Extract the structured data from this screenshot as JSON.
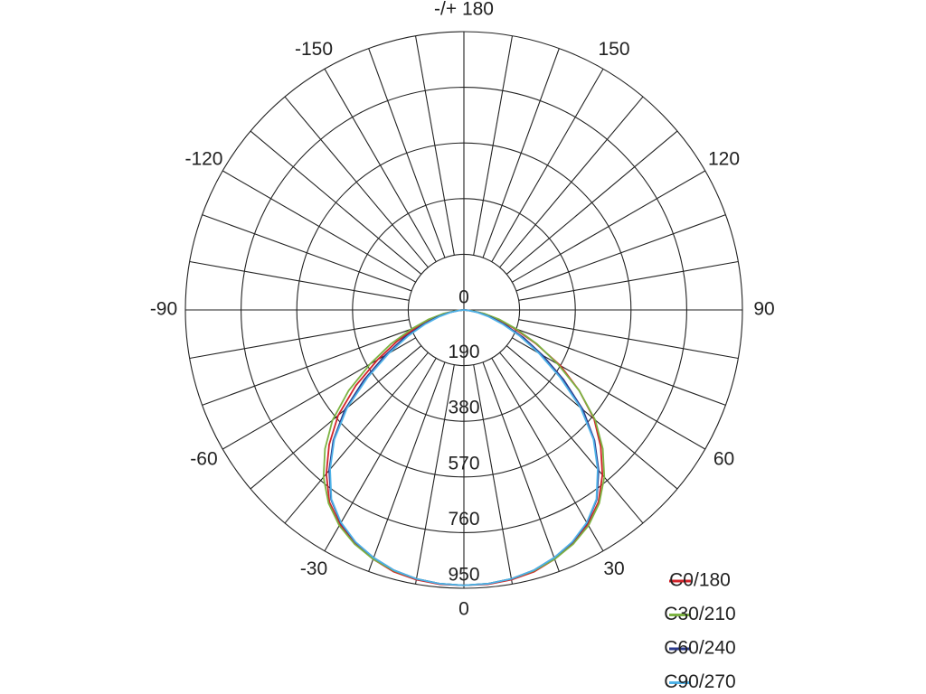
{
  "chart_data": {
    "type": "polar",
    "theta": [
      -90,
      -85,
      -80,
      -75,
      -70,
      -65,
      -60,
      -55,
      -50,
      -45,
      -40,
      -35,
      -30,
      -25,
      -20,
      -15,
      -10,
      -5,
      0,
      5,
      10,
      15,
      20,
      25,
      30,
      35,
      40,
      45,
      50,
      55,
      60,
      65,
      70,
      75,
      80,
      85,
      90
    ],
    "series": [
      {
        "name": "C0/180",
        "color": "#d2232a",
        "values": [
          0,
          20,
          60,
          110,
          170,
          250,
          340,
          450,
          560,
          650,
          730,
          800,
          845,
          880,
          905,
          925,
          935,
          940,
          940,
          940,
          935,
          925,
          905,
          880,
          845,
          800,
          735,
          660,
          580,
          480,
          380,
          270,
          180,
          110,
          60,
          20,
          0
        ]
      },
      {
        "name": "C30/210",
        "color": "#7cb342",
        "values": [
          0,
          25,
          70,
          125,
          190,
          275,
          370,
          480,
          585,
          670,
          745,
          805,
          850,
          882,
          905,
          922,
          932,
          938,
          940,
          938,
          932,
          922,
          905,
          882,
          850,
          805,
          745,
          670,
          585,
          480,
          370,
          275,
          190,
          125,
          70,
          25,
          0
        ]
      },
      {
        "name": "C60/240",
        "color": "#2b3a8c",
        "values": [
          0,
          15,
          50,
          95,
          150,
          225,
          310,
          415,
          530,
          630,
          715,
          790,
          840,
          875,
          900,
          920,
          932,
          938,
          940,
          938,
          932,
          920,
          900,
          875,
          840,
          790,
          715,
          630,
          530,
          415,
          310,
          225,
          150,
          95,
          50,
          15,
          0
        ]
      },
      {
        "name": "C90/270",
        "color": "#4fb3e8",
        "values": [
          0,
          12,
          45,
          85,
          140,
          210,
          295,
          400,
          520,
          625,
          710,
          788,
          838,
          874,
          900,
          920,
          932,
          938,
          940,
          938,
          932,
          920,
          900,
          874,
          838,
          788,
          710,
          625,
          520,
          400,
          295,
          210,
          140,
          85,
          45,
          12,
          0
        ]
      }
    ],
    "rlim": [
      0,
      950
    ],
    "rticks": [
      0,
      190,
      380,
      570,
      760,
      950
    ],
    "thetaticks": [
      {
        "value": 180,
        "label": "-/+ 180"
      },
      150,
      120,
      90,
      60,
      30,
      0,
      -30,
      -60,
      -90,
      -120,
      -150
    ],
    "legend": "lower right"
  }
}
